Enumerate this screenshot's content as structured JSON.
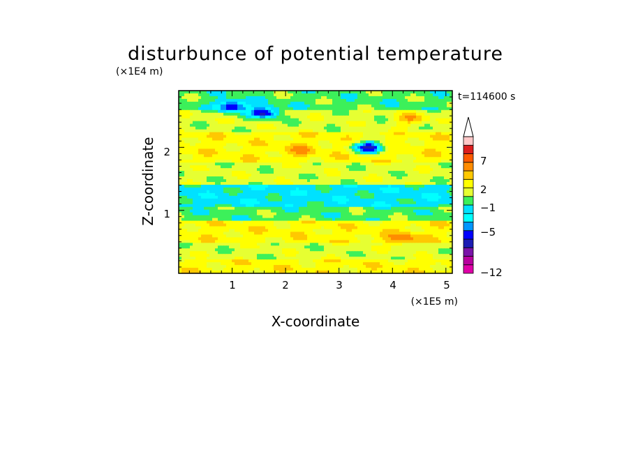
{
  "chart_data": {
    "type": "heatmap",
    "title": "disturbunce of potential temperature",
    "xlabel": "X-coordinate",
    "ylabel": "Z-coordinate",
    "x_unit": "(×1E5 m)",
    "y_unit": "(×1E4 m)",
    "time_label": "t=114600 s",
    "x_ticks": [
      "1",
      "2",
      "3",
      "4",
      "5"
    ],
    "y_ticks": [
      "1",
      "2"
    ],
    "xlim": [
      0,
      5.12
    ],
    "ylim": [
      0,
      2.9
    ],
    "colorbar": {
      "extend": "max",
      "tick_labels": [
        "7",
        "2",
        "−1",
        "−5",
        "−12"
      ],
      "tick_values": [
        7,
        2,
        -1,
        -5,
        -12
      ],
      "levels": [
        -12,
        -10,
        -8,
        -6,
        -5,
        -4,
        -3,
        -2,
        -1,
        0,
        1,
        2,
        3,
        5,
        7,
        9,
        12
      ],
      "colors": [
        "#e000a8",
        "#b8009e",
        "#7a14a8",
        "#1c1cb4",
        "#0000ff",
        "#0096ff",
        "#00ffff",
        "#00e1ff",
        "#3cf05a",
        "#e6ff32",
        "#ffff00",
        "#ffc800",
        "#ff8c00",
        "#ff5a00",
        "#dc1e1e",
        "#ffc8c8"
      ]
    },
    "bands": [
      {
        "z": [
          0.0,
          0.2
        ],
        "value": 1.5,
        "note": "yellow base"
      },
      {
        "z": [
          0.2,
          0.5
        ],
        "value": 0.5
      },
      {
        "z": [
          0.5,
          0.85
        ],
        "value": 1.5
      },
      {
        "z": [
          0.85,
          1.05
        ],
        "value": -0.5
      },
      {
        "z": [
          1.05,
          1.4
        ],
        "value": -1.5
      },
      {
        "z": [
          1.4,
          1.75
        ],
        "value": 0.5
      },
      {
        "z": [
          1.75,
          2.25
        ],
        "value": 1.5
      },
      {
        "z": [
          2.25,
          2.6
        ],
        "value": 0.5
      },
      {
        "z": [
          2.6,
          2.9
        ],
        "value": -0.5
      }
    ],
    "features": [
      {
        "x": 1.0,
        "z": 2.65,
        "value": -5.5
      },
      {
        "x": 1.6,
        "z": 2.55,
        "value": -5.5
      },
      {
        "x": 3.55,
        "z": 2.0,
        "value": -5.5
      },
      {
        "x": 4.35,
        "z": 2.45,
        "value": 3.0
      },
      {
        "x": 2.3,
        "z": 1.95,
        "value": 3.0
      },
      {
        "x": 4.2,
        "z": 0.55,
        "value": 4.0
      }
    ]
  }
}
